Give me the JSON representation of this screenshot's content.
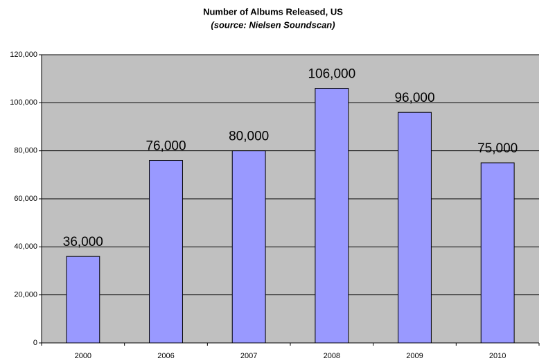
{
  "chart_data": {
    "type": "bar",
    "title": "Number of Albums Released, US",
    "subtitle": "(source: Nielsen Soundscan)",
    "categories": [
      "2000",
      "2006",
      "2007",
      "2008",
      "2009",
      "2010"
    ],
    "values": [
      36000,
      76000,
      80000,
      106000,
      96000,
      75000
    ],
    "value_labels": [
      "36,000",
      "76,000",
      "80,000",
      "106,000",
      "96,000",
      "75,000"
    ],
    "color": "#9999ff",
    "ylim": [
      0,
      120000
    ],
    "yticks": [
      0,
      {
        "value": 20000,
        "label": "20,000"
      },
      {
        "value": 40000,
        "label": "40,000"
      },
      {
        "value": 60000,
        "label": "60,000"
      },
      {
        "value": 80000,
        "label": "80,000"
      },
      {
        "value": 100000,
        "label": "100,000"
      },
      {
        "value": 120000,
        "label": "120,000"
      }
    ],
    "grid": true
  }
}
